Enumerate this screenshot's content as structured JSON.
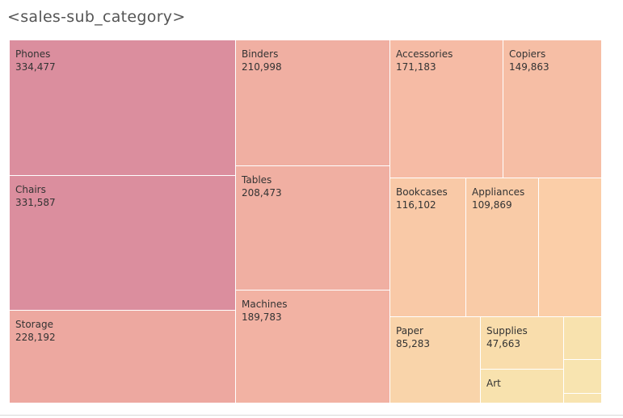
{
  "page": {
    "title": "<sales-sub_category>"
  },
  "chart_data": {
    "type": "treemap",
    "title": "<sales-sub_category>",
    "color_scale": [
      "#f8e2ab",
      "#f9c9a2",
      "#f2b0a0",
      "#db8e9e"
    ],
    "items": [
      {
        "label": "Phones",
        "value": 334477,
        "display": "334,477",
        "color": "#db8e9e"
      },
      {
        "label": "Chairs",
        "value": 331587,
        "display": "331,587",
        "color": "#db8e9e"
      },
      {
        "label": "Storage",
        "value": 228192,
        "display": "228,192",
        "color": "#eda8a0"
      },
      {
        "label": "Binders",
        "value": 210998,
        "display": "210,998",
        "color": "#f0afa2"
      },
      {
        "label": "Tables",
        "value": 208473,
        "display": "208,473",
        "color": "#f0afa2"
      },
      {
        "label": "Machines",
        "value": 189783,
        "display": "189,783",
        "color": "#f2b2a3"
      },
      {
        "label": "Accessories",
        "value": 171183,
        "display": "171,183",
        "color": "#f6bba5"
      },
      {
        "label": "Copiers",
        "value": 149863,
        "display": "149,863",
        "color": "#f6bea5"
      },
      {
        "label": "Bookcases",
        "value": 116102,
        "display": "116,102",
        "color": "#f9c9a7"
      },
      {
        "label": "Appliances",
        "value": 109869,
        "display": "109,869",
        "color": "#f9cba7"
      },
      {
        "label": "",
        "value": 95000,
        "display": "",
        "color": "#fbcea8"
      },
      {
        "label": "Paper",
        "value": 85283,
        "display": "85,283",
        "color": "#f9d4aa"
      },
      {
        "label": "Supplies",
        "value": 47663,
        "display": "47,663",
        "color": "#f9ddac"
      },
      {
        "label": "Art",
        "value": 27000,
        "display": "",
        "color": "#f8e2ae"
      },
      {
        "label": "",
        "value": 13500,
        "display": "",
        "color": "#f8e2ae"
      },
      {
        "label": "",
        "value": 11000,
        "display": "",
        "color": "#f8e4b0"
      },
      {
        "label": "",
        "value": 3000,
        "display": "",
        "color": "#f8e4b0"
      }
    ]
  }
}
